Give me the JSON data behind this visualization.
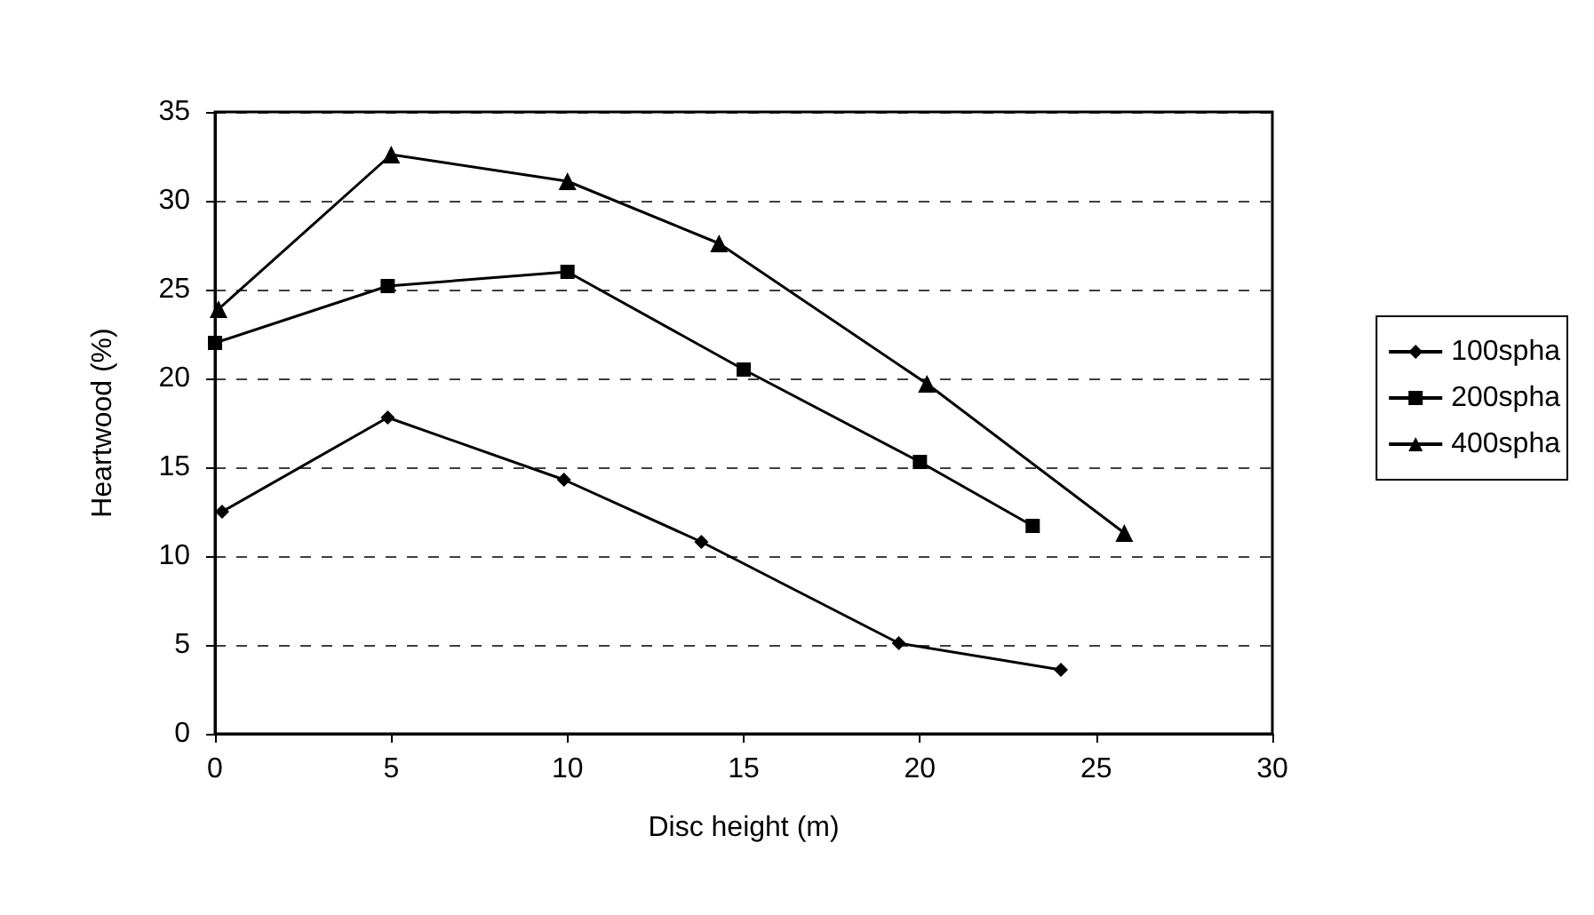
{
  "chart_data": {
    "type": "line",
    "xlabel": "Disc height (m)",
    "ylabel": "Heartwood (%)",
    "xlim": [
      0,
      30
    ],
    "xticks": [
      0,
      5,
      10,
      15,
      20,
      25,
      30
    ],
    "ylim": [
      0,
      35
    ],
    "yticks": [
      0,
      5,
      10,
      15,
      20,
      25,
      30,
      35
    ],
    "grid": "y",
    "legend": "right",
    "line_style": "solid",
    "series": [
      {
        "name": "100spha",
        "color": "#000000",
        "marker": "diamond",
        "x": [
          0.2,
          4.9,
          9.9,
          13.8,
          19.4,
          24.0
        ],
        "values": [
          12.5,
          17.8,
          14.3,
          10.8,
          5.1,
          3.6
        ]
      },
      {
        "name": "200spha",
        "color": "#000000",
        "marker": "square",
        "x": [
          0.0,
          4.9,
          10.0,
          15.0,
          20.0,
          23.2
        ],
        "values": [
          22.0,
          25.2,
          26.0,
          20.5,
          15.3,
          11.7
        ]
      },
      {
        "name": "400spha",
        "color": "#000000",
        "marker": "triangle",
        "x": [
          0.1,
          5.0,
          10.0,
          14.3,
          20.2,
          25.8
        ],
        "values": [
          23.9,
          32.6,
          31.1,
          27.6,
          19.7,
          11.3
        ]
      }
    ]
  }
}
